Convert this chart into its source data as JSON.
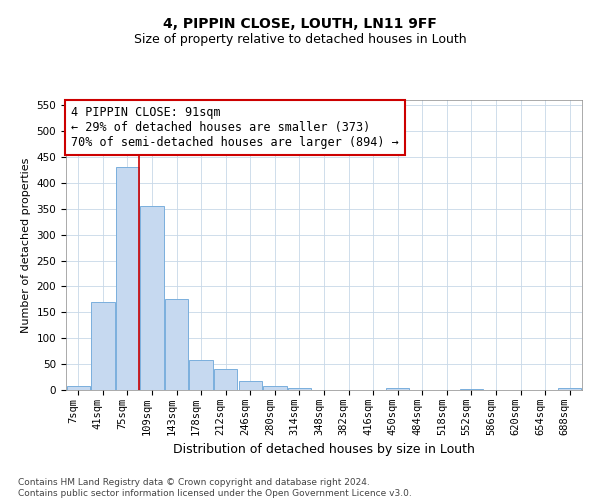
{
  "title": "4, PIPPIN CLOSE, LOUTH, LN11 9FF",
  "subtitle": "Size of property relative to detached houses in Louth",
  "xlabel": "Distribution of detached houses by size in Louth",
  "ylabel": "Number of detached properties",
  "footer": "Contains HM Land Registry data © Crown copyright and database right 2024.\nContains public sector information licensed under the Open Government Licence v3.0.",
  "categories": [
    "7sqm",
    "41sqm",
    "75sqm",
    "109sqm",
    "143sqm",
    "178sqm",
    "212sqm",
    "246sqm",
    "280sqm",
    "314sqm",
    "348sqm",
    "382sqm",
    "416sqm",
    "450sqm",
    "484sqm",
    "518sqm",
    "552sqm",
    "586sqm",
    "620sqm",
    "654sqm",
    "688sqm"
  ],
  "values": [
    8,
    170,
    430,
    355,
    175,
    57,
    40,
    18,
    8,
    3,
    0,
    0,
    0,
    3,
    0,
    0,
    2,
    0,
    0,
    0,
    3
  ],
  "bar_color": "#c6d9f0",
  "bar_edge_color": "#7aafdd",
  "bar_linewidth": 0.7,
  "vline_index": 2,
  "vline_color": "#cc0000",
  "vline_linewidth": 1.2,
  "annotation_text": "4 PIPPIN CLOSE: 91sqm\n← 29% of detached houses are smaller (373)\n70% of semi-detached houses are larger (894) →",
  "annotation_box_color": "white",
  "annotation_box_edge": "#cc0000",
  "annotation_fontsize": 8.5,
  "ylim": [
    0,
    560
  ],
  "yticks": [
    0,
    50,
    100,
    150,
    200,
    250,
    300,
    350,
    400,
    450,
    500,
    550
  ],
  "title_fontsize": 10,
  "subtitle_fontsize": 9,
  "xlabel_fontsize": 9,
  "ylabel_fontsize": 8,
  "tick_fontsize": 7.5,
  "footer_fontsize": 6.5,
  "bg_color": "#ffffff",
  "grid_color": "#c8d8e8"
}
